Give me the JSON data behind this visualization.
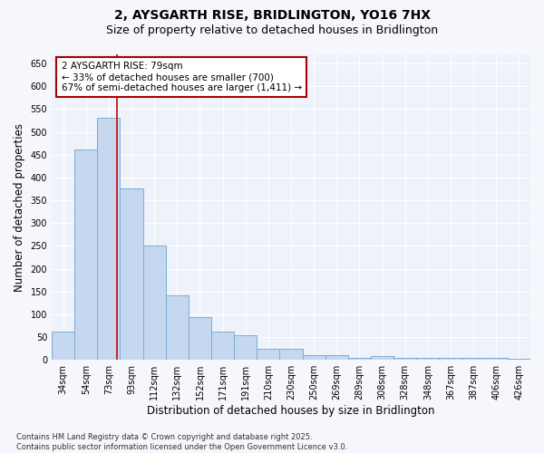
{
  "title_line1": "2, AYSGARTH RISE, BRIDLINGTON, YO16 7HX",
  "title_line2": "Size of property relative to detached houses in Bridlington",
  "xlabel": "Distribution of detached houses by size in Bridlington",
  "ylabel": "Number of detached properties",
  "categories": [
    "34sqm",
    "54sqm",
    "73sqm",
    "93sqm",
    "112sqm",
    "132sqm",
    "152sqm",
    "171sqm",
    "191sqm",
    "210sqm",
    "230sqm",
    "250sqm",
    "269sqm",
    "289sqm",
    "308sqm",
    "328sqm",
    "348sqm",
    "367sqm",
    "387sqm",
    "406sqm",
    "426sqm"
  ],
  "values": [
    62,
    462,
    530,
    375,
    250,
    142,
    93,
    63,
    55,
    25,
    25,
    11,
    11,
    5,
    8,
    4,
    4,
    4,
    5,
    4,
    3
  ],
  "bar_color": "#c5d8f0",
  "bar_edge_color": "#7aadd4",
  "vline_index": 2,
  "vline_color": "#cc0000",
  "annotation_text": "2 AYSGARTH RISE: 79sqm\n← 33% of detached houses are smaller (700)\n67% of semi-detached houses are larger (1,411) →",
  "annotation_box_color": "#aa0000",
  "ylim": [
    0,
    670
  ],
  "yticks": [
    0,
    50,
    100,
    150,
    200,
    250,
    300,
    350,
    400,
    450,
    500,
    550,
    600,
    650
  ],
  "footnote": "Contains HM Land Registry data © Crown copyright and database right 2025.\nContains public sector information licensed under the Open Government Licence v3.0.",
  "plot_bg_color": "#eef2fb",
  "fig_bg_color": "#f5f7fd",
  "grid_color": "#ffffff",
  "title_fontsize": 10,
  "subtitle_fontsize": 9,
  "axis_label_fontsize": 8.5,
  "tick_fontsize": 7,
  "annotation_fontsize": 7.5,
  "footnote_fontsize": 6
}
